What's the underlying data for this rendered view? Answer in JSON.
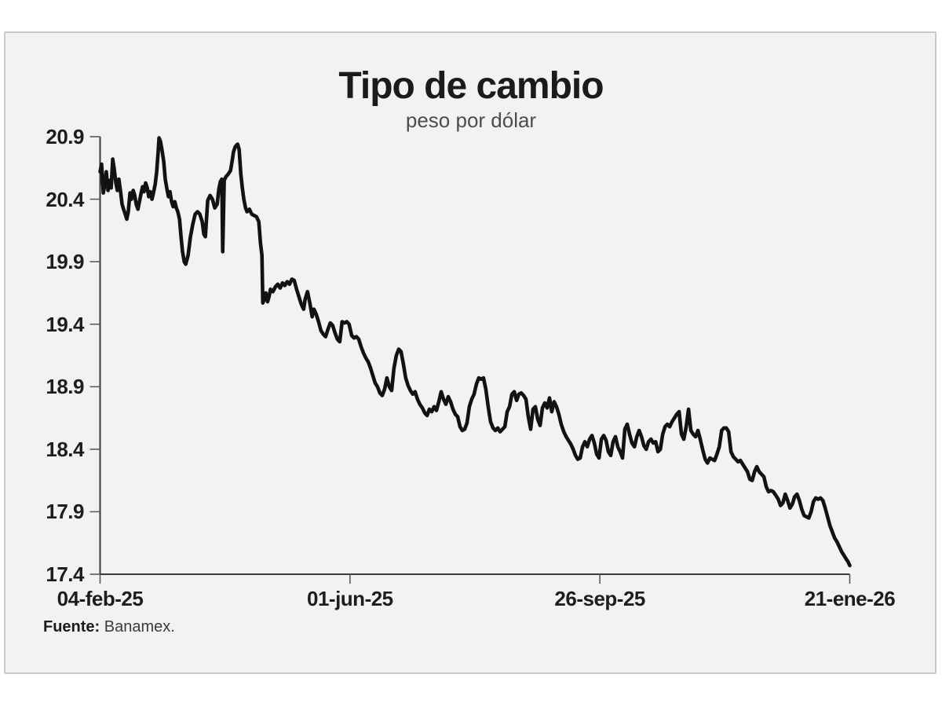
{
  "page": {
    "background": "#ffffff",
    "panel_background": "#f2f2f2",
    "panel_border": "#c9c9c9"
  },
  "header": {
    "title": "Tipo de cambio",
    "subtitle": "peso por dólar"
  },
  "source": {
    "prefix": "Fuente:",
    "text": " Banamex."
  },
  "chart_data": {
    "type": "line",
    "title": "Tipo de cambio",
    "subtitle": "peso por dólar",
    "x_unit": "days since 04-feb-25",
    "x_range_days": [
      0,
      351
    ],
    "x_tick_days": [
      0,
      117,
      234,
      351
    ],
    "x_tick_labels": [
      "04-feb-25",
      "01-jun-25",
      "26-sep-25",
      "21-ene-26"
    ],
    "ylim": [
      17.4,
      20.9
    ],
    "y_ticks": [
      20.9,
      20.4,
      19.9,
      19.4,
      18.9,
      18.4,
      17.9,
      17.4
    ],
    "y_tick_labels": [
      "20.9",
      "20.4",
      "19.9",
      "19.4",
      "18.9",
      "18.4",
      "17.9",
      "17.4"
    ],
    "grid": false,
    "legend": false,
    "line_color": "#121212",
    "line_width": 4.6,
    "axis_color": "#3a3a3a",
    "tick_color": "#5a5a5a",
    "points": [
      [
        0,
        20.62
      ],
      [
        0.7,
        20.68
      ],
      [
        1.5,
        20.45
      ],
      [
        2.2,
        20.52
      ],
      [
        2.9,
        20.62
      ],
      [
        3.7,
        20.47
      ],
      [
        4.4,
        20.55
      ],
      [
        5.2,
        20.49
      ],
      [
        5.9,
        20.72
      ],
      [
        6.6,
        20.64
      ],
      [
        7.4,
        20.53
      ],
      [
        8.1,
        20.47
      ],
      [
        8.8,
        20.56
      ],
      [
        9.6,
        20.46
      ],
      [
        10.3,
        20.36
      ],
      [
        11,
        20.32
      ],
      [
        11.8,
        20.28
      ],
      [
        12.5,
        20.24
      ],
      [
        13.2,
        20.3
      ],
      [
        14,
        20.45
      ],
      [
        14.7,
        20.4
      ],
      [
        15.5,
        20.47
      ],
      [
        16.2,
        20.43
      ],
      [
        16.9,
        20.36
      ],
      [
        17.7,
        20.32
      ],
      [
        18.4,
        20.38
      ],
      [
        19.1,
        20.44
      ],
      [
        19.9,
        20.5
      ],
      [
        20.6,
        20.46
      ],
      [
        21.3,
        20.53
      ],
      [
        22.1,
        20.49
      ],
      [
        22.8,
        20.42
      ],
      [
        23.5,
        20.46
      ],
      [
        24.3,
        20.4
      ],
      [
        25,
        20.45
      ],
      [
        25.8,
        20.52
      ],
      [
        26.5,
        20.62
      ],
      [
        27.2,
        20.78
      ],
      [
        27.6,
        20.89
      ],
      [
        28.3,
        20.86
      ],
      [
        29.1,
        20.78
      ],
      [
        29.8,
        20.7
      ],
      [
        30.5,
        20.56
      ],
      [
        31.3,
        20.48
      ],
      [
        32,
        20.42
      ],
      [
        32.7,
        20.46
      ],
      [
        33.5,
        20.38
      ],
      [
        34.2,
        20.34
      ],
      [
        35,
        20.38
      ],
      [
        35.7,
        20.33
      ],
      [
        36.4,
        20.3
      ],
      [
        37.2,
        20.24
      ],
      [
        37.9,
        20.1
      ],
      [
        38.6,
        19.98
      ],
      [
        39.4,
        19.9
      ],
      [
        40.1,
        19.88
      ],
      [
        41.2,
        19.95
      ],
      [
        42.3,
        20.1
      ],
      [
        43.4,
        20.2
      ],
      [
        44.5,
        20.28
      ],
      [
        45.6,
        20.3
      ],
      [
        46.7,
        20.28
      ],
      [
        47.8,
        20.22
      ],
      [
        48.6,
        20.12
      ],
      [
        49.3,
        20.1
      ],
      [
        50.4,
        20.39
      ],
      [
        51.5,
        20.43
      ],
      [
        52.6,
        20.4
      ],
      [
        53.7,
        20.33
      ],
      [
        54.8,
        20.36
      ],
      [
        55.6,
        20.48
      ],
      [
        56.3,
        20.54
      ],
      [
        57,
        20.56
      ],
      [
        57.4,
        19.98
      ],
      [
        58.1,
        20.55
      ],
      [
        58.9,
        20.58
      ],
      [
        60,
        20.6
      ],
      [
        61.1,
        20.63
      ],
      [
        61.8,
        20.7
      ],
      [
        62.5,
        20.78
      ],
      [
        63.3,
        20.82
      ],
      [
        64.4,
        20.84
      ],
      [
        65.1,
        20.8
      ],
      [
        65.9,
        20.6
      ],
      [
        66.6,
        20.49
      ],
      [
        67.3,
        20.4
      ],
      [
        68.1,
        20.33
      ],
      [
        68.8,
        20.3
      ],
      [
        69.9,
        20.32
      ],
      [
        71,
        20.28
      ],
      [
        72.1,
        20.27
      ],
      [
        73.2,
        20.26
      ],
      [
        74.3,
        20.22
      ],
      [
        75.1,
        20.05
      ],
      [
        75.8,
        19.95
      ],
      [
        76.2,
        19.57
      ],
      [
        76.9,
        19.6
      ],
      [
        77.6,
        19.65
      ],
      [
        78.4,
        19.58
      ],
      [
        79.1,
        19.62
      ],
      [
        79.8,
        19.68
      ],
      [
        80.9,
        19.66
      ],
      [
        82.1,
        19.7
      ],
      [
        83.2,
        19.72
      ],
      [
        84.3,
        19.69
      ],
      [
        85.4,
        19.73
      ],
      [
        86.5,
        19.71
      ],
      [
        87.6,
        19.74
      ],
      [
        88.7,
        19.72
      ],
      [
        89.8,
        19.76
      ],
      [
        90.9,
        19.75
      ],
      [
        92,
        19.68
      ],
      [
        93.1,
        19.62
      ],
      [
        94.2,
        19.56
      ],
      [
        95.3,
        19.52
      ],
      [
        96,
        19.6
      ],
      [
        97.1,
        19.66
      ],
      [
        98.2,
        19.57
      ],
      [
        99.3,
        19.46
      ],
      [
        100.1,
        19.52
      ],
      [
        101.2,
        19.48
      ],
      [
        102.3,
        19.42
      ],
      [
        103.4,
        19.35
      ],
      [
        104.5,
        19.32
      ],
      [
        105.6,
        19.3
      ],
      [
        106.7,
        19.36
      ],
      [
        107.8,
        19.41
      ],
      [
        108.9,
        19.39
      ],
      [
        110,
        19.33
      ],
      [
        111.1,
        19.28
      ],
      [
        112.2,
        19.26
      ],
      [
        113.3,
        19.42
      ],
      [
        114.4,
        19.41
      ],
      [
        115.5,
        19.42
      ],
      [
        116.6,
        19.4
      ],
      [
        117.8,
        19.31
      ],
      [
        118.9,
        19.29
      ],
      [
        120,
        19.3
      ],
      [
        121.1,
        19.28
      ],
      [
        122.2,
        19.22
      ],
      [
        123.3,
        19.17
      ],
      [
        124.4,
        19.13
      ],
      [
        125.5,
        19.1
      ],
      [
        126.6,
        19.05
      ],
      [
        127.7,
        18.99
      ],
      [
        128.8,
        18.93
      ],
      [
        129.9,
        18.9
      ],
      [
        131,
        18.85
      ],
      [
        132.1,
        18.83
      ],
      [
        133.2,
        18.88
      ],
      [
        134.3,
        18.97
      ],
      [
        135.4,
        18.9
      ],
      [
        136.5,
        18.87
      ],
      [
        137.6,
        19.05
      ],
      [
        138.7,
        19.15
      ],
      [
        139.8,
        19.2
      ],
      [
        140.9,
        19.18
      ],
      [
        142,
        19.08
      ],
      [
        143.1,
        18.97
      ],
      [
        144.2,
        18.91
      ],
      [
        145.3,
        18.87
      ],
      [
        146.4,
        18.84
      ],
      [
        147.5,
        18.86
      ],
      [
        148.6,
        18.8
      ],
      [
        149.7,
        18.76
      ],
      [
        150.9,
        18.73
      ],
      [
        152,
        18.69
      ],
      [
        153.1,
        18.67
      ],
      [
        154.2,
        18.72
      ],
      [
        155.3,
        18.7
      ],
      [
        156.4,
        18.74
      ],
      [
        157.5,
        18.71
      ],
      [
        158.6,
        18.78
      ],
      [
        159.7,
        18.86
      ],
      [
        160.8,
        18.8
      ],
      [
        161.9,
        18.76
      ],
      [
        163,
        18.82
      ],
      [
        164.1,
        18.78
      ],
      [
        165.2,
        18.72
      ],
      [
        166.3,
        18.68
      ],
      [
        167.4,
        18.66
      ],
      [
        168.5,
        18.58
      ],
      [
        169.6,
        18.55
      ],
      [
        170.7,
        18.56
      ],
      [
        171.8,
        18.61
      ],
      [
        172.9,
        18.74
      ],
      [
        174,
        18.8
      ],
      [
        175.1,
        18.84
      ],
      [
        176.2,
        18.92
      ],
      [
        177.3,
        18.97
      ],
      [
        178.4,
        18.96
      ],
      [
        179.5,
        18.97
      ],
      [
        180.6,
        18.88
      ],
      [
        181.7,
        18.74
      ],
      [
        182.8,
        18.62
      ],
      [
        184,
        18.57
      ],
      [
        185.1,
        18.55
      ],
      [
        186.2,
        18.57
      ],
      [
        187.3,
        18.54
      ],
      [
        188.4,
        18.56
      ],
      [
        189.5,
        18.58
      ],
      [
        190.6,
        18.7
      ],
      [
        191.7,
        18.74
      ],
      [
        192.8,
        18.84
      ],
      [
        193.9,
        18.86
      ],
      [
        195,
        18.79
      ],
      [
        196.1,
        18.84
      ],
      [
        197.2,
        18.85
      ],
      [
        198.3,
        18.83
      ],
      [
        199.4,
        18.8
      ],
      [
        200.5,
        18.66
      ],
      [
        201.6,
        18.56
      ],
      [
        202.7,
        18.72
      ],
      [
        203.8,
        18.74
      ],
      [
        204.9,
        18.64
      ],
      [
        206,
        18.59
      ],
      [
        207.1,
        18.73
      ],
      [
        208.2,
        18.77
      ],
      [
        209.3,
        18.73
      ],
      [
        210.4,
        18.81
      ],
      [
        211.5,
        18.7
      ],
      [
        212.6,
        18.78
      ],
      [
        213.7,
        18.74
      ],
      [
        214.8,
        18.68
      ],
      [
        215.9,
        18.6
      ],
      [
        217.1,
        18.54
      ],
      [
        218.2,
        18.5
      ],
      [
        219.3,
        18.47
      ],
      [
        220.4,
        18.44
      ],
      [
        221.5,
        18.4
      ],
      [
        222.6,
        18.35
      ],
      [
        223.7,
        18.32
      ],
      [
        224.8,
        18.33
      ],
      [
        225.9,
        18.42
      ],
      [
        227,
        18.46
      ],
      [
        228.1,
        18.42
      ],
      [
        229.2,
        18.48
      ],
      [
        230.3,
        18.51
      ],
      [
        231.4,
        18.45
      ],
      [
        232.5,
        18.36
      ],
      [
        233.6,
        18.33
      ],
      [
        234.7,
        18.48
      ],
      [
        235.8,
        18.51
      ],
      [
        236.9,
        18.47
      ],
      [
        238,
        18.38
      ],
      [
        239.1,
        18.35
      ],
      [
        240.2,
        18.46
      ],
      [
        241.3,
        18.5
      ],
      [
        242.4,
        18.42
      ],
      [
        243.5,
        18.38
      ],
      [
        244.6,
        18.33
      ],
      [
        245.7,
        18.56
      ],
      [
        246.8,
        18.6
      ],
      [
        247.9,
        18.52
      ],
      [
        249,
        18.45
      ],
      [
        250.2,
        18.42
      ],
      [
        251.3,
        18.5
      ],
      [
        252.4,
        18.55
      ],
      [
        253.5,
        18.5
      ],
      [
        254.6,
        18.43
      ],
      [
        255.7,
        18.4
      ],
      [
        256.8,
        18.46
      ],
      [
        257.9,
        18.48
      ],
      [
        259,
        18.45
      ],
      [
        260.1,
        18.46
      ],
      [
        261.2,
        18.38
      ],
      [
        262.3,
        18.4
      ],
      [
        263.4,
        18.52
      ],
      [
        264.5,
        18.58
      ],
      [
        265.6,
        18.6
      ],
      [
        266.7,
        18.58
      ],
      [
        267.8,
        18.62
      ],
      [
        268.9,
        18.65
      ],
      [
        270,
        18.68
      ],
      [
        271.1,
        18.7
      ],
      [
        272.2,
        18.52
      ],
      [
        273.3,
        18.48
      ],
      [
        274.4,
        18.58
      ],
      [
        275.5,
        18.72
      ],
      [
        276.6,
        18.55
      ],
      [
        277.7,
        18.52
      ],
      [
        278.8,
        18.5
      ],
      [
        279.9,
        18.55
      ],
      [
        281,
        18.48
      ],
      [
        282.1,
        18.4
      ],
      [
        283.3,
        18.32
      ],
      [
        284.4,
        18.29
      ],
      [
        285.5,
        18.33
      ],
      [
        286.6,
        18.32
      ],
      [
        287.7,
        18.31
      ],
      [
        288.8,
        18.36
      ],
      [
        289.9,
        18.42
      ],
      [
        291,
        18.55
      ],
      [
        292.1,
        18.57
      ],
      [
        293.2,
        18.57
      ],
      [
        294.3,
        18.54
      ],
      [
        295.4,
        18.38
      ],
      [
        296.5,
        18.34
      ],
      [
        297.6,
        18.32
      ],
      [
        298.7,
        18.3
      ],
      [
        299.8,
        18.31
      ],
      [
        300.9,
        18.28
      ],
      [
        302,
        18.25
      ],
      [
        303.1,
        18.22
      ],
      [
        304.2,
        18.16
      ],
      [
        305.3,
        18.15
      ],
      [
        306.4,
        18.22
      ],
      [
        307.5,
        18.26
      ],
      [
        308.6,
        18.22
      ],
      [
        309.7,
        18.2
      ],
      [
        310.8,
        18.18
      ],
      [
        311.9,
        18.1
      ],
      [
        313,
        18.06
      ],
      [
        314.1,
        18.07
      ],
      [
        315.2,
        18.06
      ],
      [
        316.4,
        18.03
      ],
      [
        317.5,
        18
      ],
      [
        318.6,
        17.95
      ],
      [
        319.7,
        17.97
      ],
      [
        320.8,
        18.04
      ],
      [
        321.9,
        17.99
      ],
      [
        323,
        17.93
      ],
      [
        324.1,
        17.96
      ],
      [
        325.2,
        18.02
      ],
      [
        326.3,
        18.04
      ],
      [
        327.4,
        17.99
      ],
      [
        328.5,
        17.92
      ],
      [
        329.6,
        17.87
      ],
      [
        330.7,
        17.86
      ],
      [
        331.8,
        17.85
      ],
      [
        332.9,
        17.9
      ],
      [
        334,
        17.98
      ],
      [
        335.1,
        18.01
      ],
      [
        336.2,
        18
      ],
      [
        337.3,
        18.01
      ],
      [
        338.4,
        17.99
      ],
      [
        339.5,
        17.93
      ],
      [
        340.6,
        17.86
      ],
      [
        341.7,
        17.79
      ],
      [
        342.8,
        17.74
      ],
      [
        343.9,
        17.69
      ],
      [
        345,
        17.66
      ],
      [
        346.1,
        17.62
      ],
      [
        347.2,
        17.58
      ],
      [
        348.3,
        17.55
      ],
      [
        349.4,
        17.52
      ],
      [
        350.2,
        17.5
      ],
      [
        351,
        17.47
      ]
    ]
  }
}
